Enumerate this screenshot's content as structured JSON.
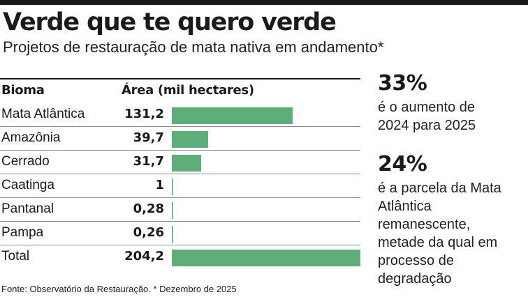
{
  "title": "Verde que te quero verde",
  "subtitle": "Projetos de restauração de mata nativa em andamento*",
  "table": {
    "header_bioma": "Bioma",
    "header_area": "Área (mil hectares)"
  },
  "chart_data": {
    "type": "bar",
    "orientation": "horizontal",
    "categories": [
      "Mata Atlântica",
      "Amazônia",
      "Cerrado",
      "Caatinga",
      "Pantanal",
      "Pampa",
      "Total"
    ],
    "values": [
      131.2,
      39.7,
      31.7,
      1,
      0.28,
      0.26,
      204.2
    ],
    "value_labels": [
      "131,2",
      "39,7",
      "31,7",
      "1",
      "0,28",
      "0,26",
      "204,2"
    ],
    "xlabel": "Área (mil hectares)",
    "xlim": [
      0,
      204.2
    ],
    "bar_color": "#5fae79"
  },
  "stats": [
    {
      "value": "33%",
      "text": "é o aumento de 2024 para 2025"
    },
    {
      "value": "24%",
      "text": "é a parcela da Mata Atlântica remanescente, metade da qual em processo de degradação"
    }
  ],
  "source": "Fonte: Observatório da Restauração. * Dezembro de 2025"
}
